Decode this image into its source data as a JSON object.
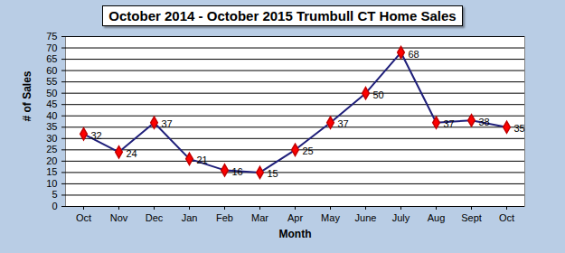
{
  "chart_data": {
    "type": "line",
    "title": "October 2014 - October 2015 Trumbull CT Home Sales",
    "x_label": "Month",
    "y_label": "# of Sales",
    "categories": [
      "Oct",
      "Nov",
      "Dec",
      "Jan",
      "Feb",
      "Mar",
      "Apr",
      "May",
      "June",
      "July",
      "Aug",
      "Sept",
      "Oct"
    ],
    "values": [
      32,
      24,
      37,
      21,
      16,
      15,
      25,
      37,
      50,
      68,
      37,
      38,
      35
    ],
    "color": "#1f1f7a",
    "marker": "diamond",
    "ylim": [
      0,
      75
    ],
    "yticks": [
      0,
      5,
      10,
      15,
      20,
      25,
      30,
      35,
      40,
      45,
      50,
      55,
      60,
      65,
      70,
      75
    ],
    "grid": true,
    "data_labels": true
  }
}
